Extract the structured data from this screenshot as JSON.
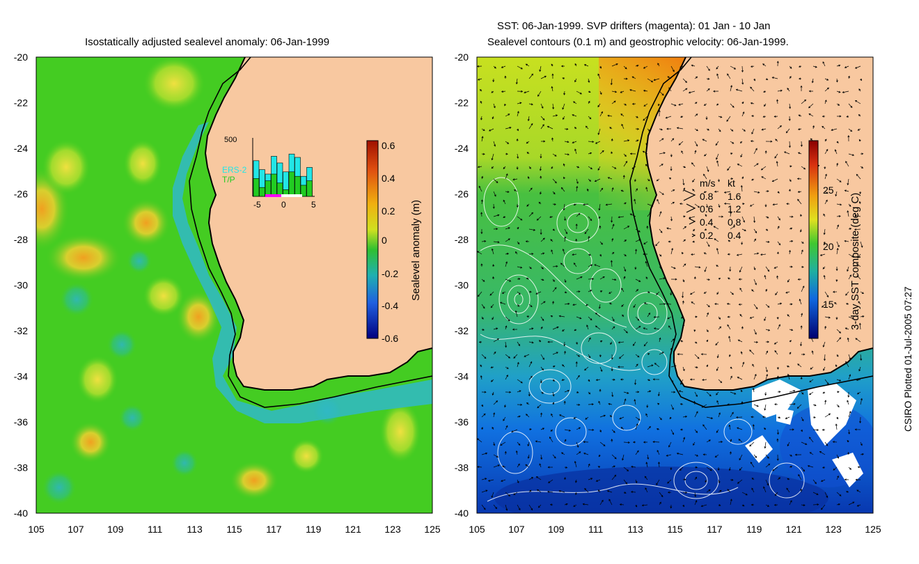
{
  "left_panel": {
    "title": "Isostatically adjusted sealevel anomaly: 06-Jan-1999",
    "colorbar": {
      "label": "Sealevel anomaly (m)",
      "ticks": [
        "0.6",
        "0.4",
        "0.2",
        "0",
        "-0.2",
        "-0.4",
        "-0.6"
      ],
      "range": [
        -0.6,
        0.6
      ]
    },
    "inset": {
      "ymax_label": "500",
      "series_labels": [
        "ERS-2",
        "T/P"
      ],
      "x_ticks": [
        "-5",
        "0",
        "5"
      ],
      "ers2_counts": [
        320,
        240,
        200,
        360,
        300,
        220,
        380,
        350,
        180,
        260
      ],
      "tp_counts": [
        160,
        80,
        140,
        200,
        120,
        60,
        220,
        180,
        100,
        140
      ],
      "colors": {
        "ers2": "#22e6e6",
        "tp": "#22cc22"
      }
    }
  },
  "right_panel": {
    "title_line1": "SST: 06-Jan-1999. SVP drifters (magenta): 01 Jan - 10 Jan",
    "title_line2": "Sealevel contours (0.1 m) and geostrophic velocity: 06-Jan-1999.",
    "colorbar": {
      "label": "3-day SST composite (deg C)",
      "ticks": [
        "25",
        "20",
        "15"
      ],
      "range": [
        12.5,
        28.5
      ]
    },
    "velocity_legend": {
      "headers": [
        "m/s",
        "kt"
      ],
      "rows": [
        {
          "ms": "0.8",
          "kt": "1.6"
        },
        {
          "ms": "0.6",
          "kt": "1.2"
        },
        {
          "ms": "0.4",
          "kt": "0.8"
        },
        {
          "ms": "0.2",
          "kt": "0.4"
        }
      ]
    }
  },
  "axes": {
    "y_ticks": [
      "-20",
      "-22",
      "-24",
      "-26",
      "-28",
      "-30",
      "-32",
      "-34",
      "-36",
      "-38",
      "-40"
    ],
    "x_ticks": [
      "105",
      "107",
      "109",
      "111",
      "113",
      "115",
      "117",
      "119",
      "121",
      "123",
      "125"
    ],
    "lon_range": [
      105,
      125
    ],
    "lat_range": [
      -40,
      -20
    ]
  },
  "credit": "CSIRO Plotted 01-Jul-2005 07:27",
  "colors": {
    "land": "#f8c8a0",
    "ocean_green": "#44cc22",
    "coast": "#000000"
  }
}
